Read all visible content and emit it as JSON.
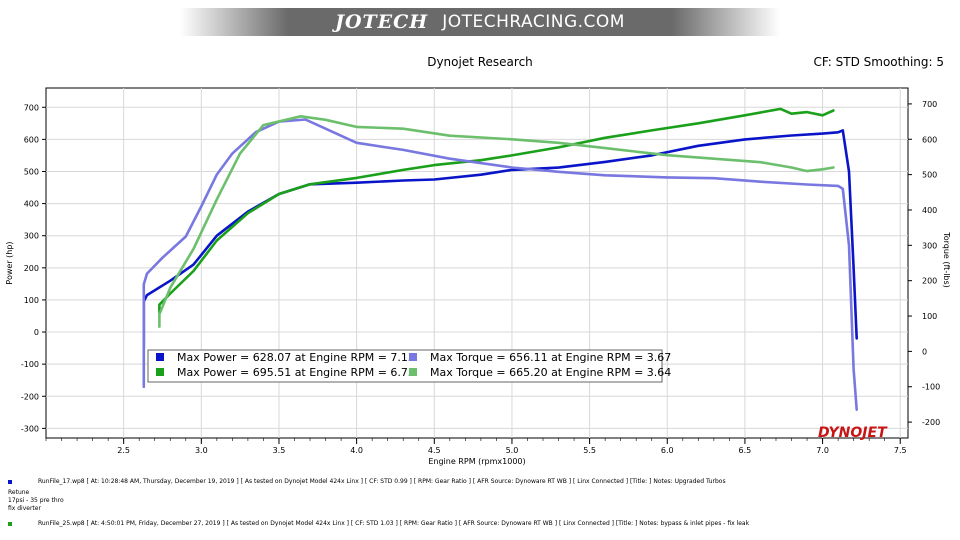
{
  "banner": {
    "brand": "JOTECH",
    "site": "JOTECHRACING.COM"
  },
  "header": {
    "title": "Dynojet Research",
    "cf": "CF: STD Smoothing: 5"
  },
  "logo": "DYNOJET",
  "colors": {
    "run17_power": "#0a14c8",
    "run17_torque": "#7878e0",
    "run25_power": "#1aa01a",
    "run25_torque": "#6cbf6c"
  },
  "chart_data": {
    "type": "line",
    "xlabel": "Engine RPM (rpmx1000)",
    "ylabel_left": "Power (hp)",
    "ylabel_right": "Torque (ft-lbs)",
    "xlim": [
      2.0,
      7.55
    ],
    "ylim_left": [
      -330,
      760
    ],
    "ylim_right": [
      -245,
      745
    ],
    "x_ticks": [
      2.5,
      3.0,
      3.5,
      4.0,
      4.5,
      5.0,
      5.5,
      6.0,
      6.5,
      7.0,
      7.5
    ],
    "y_ticks_left": [
      -300,
      -200,
      -100,
      0,
      100,
      200,
      300,
      400,
      500,
      600,
      700
    ],
    "y_ticks_right": [
      -200,
      -100,
      0,
      100,
      200,
      300,
      400,
      500,
      600,
      700
    ],
    "grid": true,
    "series": [
      {
        "axis": "left",
        "color": "#0a14c8",
        "x": [
          2.63,
          2.63,
          2.65,
          2.8,
          2.95,
          3.1,
          3.3,
          3.5,
          3.7,
          4.0,
          4.3,
          4.5,
          4.8,
          5.0,
          5.3,
          5.6,
          5.9,
          6.2,
          6.5,
          6.8,
          7.0,
          7.1,
          7.13,
          7.17,
          7.2,
          7.22
        ],
        "values": [
          -50,
          95,
          115,
          160,
          210,
          300,
          375,
          430,
          460,
          465,
          472,
          475,
          490,
          505,
          512,
          530,
          550,
          580,
          600,
          612,
          618,
          622,
          628,
          500,
          200,
          -20
        ]
      },
      {
        "axis": "left",
        "color": "#1aa01a",
        "x": [
          2.73,
          2.73,
          2.8,
          2.95,
          3.1,
          3.3,
          3.5,
          3.7,
          4.0,
          4.3,
          4.5,
          4.8,
          5.0,
          5.3,
          5.6,
          5.9,
          6.2,
          6.5,
          6.73,
          6.8,
          6.9,
          7.0,
          7.07
        ],
        "values": [
          60,
          85,
          120,
          190,
          285,
          370,
          430,
          460,
          480,
          505,
          520,
          535,
          550,
          575,
          605,
          628,
          650,
          675,
          695,
          680,
          685,
          675,
          690
        ]
      },
      {
        "axis": "right",
        "color": "#7878e0",
        "x": [
          2.63,
          2.63,
          2.65,
          2.75,
          2.9,
          3.0,
          3.1,
          3.2,
          3.35,
          3.5,
          3.67,
          3.8,
          4.0,
          4.3,
          4.6,
          5.0,
          5.3,
          5.6,
          6.0,
          6.3,
          6.6,
          6.9,
          7.1,
          7.13,
          7.17,
          7.2,
          7.22
        ],
        "values": [
          -100,
          190,
          220,
          265,
          325,
          410,
          500,
          560,
          620,
          650,
          656,
          630,
          590,
          570,
          545,
          520,
          508,
          498,
          492,
          490,
          480,
          472,
          468,
          460,
          300,
          -50,
          -165
        ]
      },
      {
        "axis": "right",
        "color": "#6cbf6c",
        "x": [
          2.73,
          2.73,
          2.8,
          2.95,
          3.1,
          3.25,
          3.4,
          3.64,
          3.8,
          4.0,
          4.3,
          4.6,
          5.0,
          5.3,
          5.6,
          6.0,
          6.3,
          6.6,
          6.8,
          6.9,
          7.0,
          7.07
        ],
        "values": [
          70,
          105,
          180,
          290,
          430,
          560,
          640,
          665,
          655,
          635,
          630,
          610,
          600,
          590,
          575,
          555,
          545,
          535,
          520,
          510,
          515,
          520
        ]
      }
    ],
    "legend": [
      {
        "text": "Max Power = 628.07 at Engine RPM = 7.13",
        "color": "#0a14c8"
      },
      {
        "text": "Max Power = 695.51 at Engine RPM = 6.73",
        "color": "#1aa01a"
      },
      {
        "text": "Max Torque = 656.11 at Engine RPM = 3.67",
        "color": "#7878e0"
      },
      {
        "text": "Max Torque = 665.20 at Engine RPM = 3.64",
        "color": "#6cbf6c"
      }
    ]
  },
  "runs": [
    {
      "text": "RunFile_17.wp8 [ At: 10:28:48 AM, Thursday, December 19, 2019 ] [ As tested on Dynojet Model 424x Linx ] [ CF: STD 0.99 ] [ RPM: Gear Ratio ] [ AFR Source: Dynoware RT WB ] [ Linx Connected ] [Title: ]   Notes: Upgraded Turbos",
      "color": "#0a14c8"
    },
    {
      "text": "RunFile_25.wp8 [ At: 4:50:01 PM, Friday, December 27, 2019 ] [ As tested on Dynojet Model 424x Linx ] [ CF: STD 1.03 ] [ RPM: Gear Ratio ] [ AFR Source: Dynoware RT WB ] [ Linx Connected ] [Title: ]   Notes: bypass & inlet pipes  - fix leak",
      "color": "#1aa01a"
    }
  ],
  "notes": [
    "Retune",
    "17psi - 35 pre thro",
    "fix diverter"
  ]
}
